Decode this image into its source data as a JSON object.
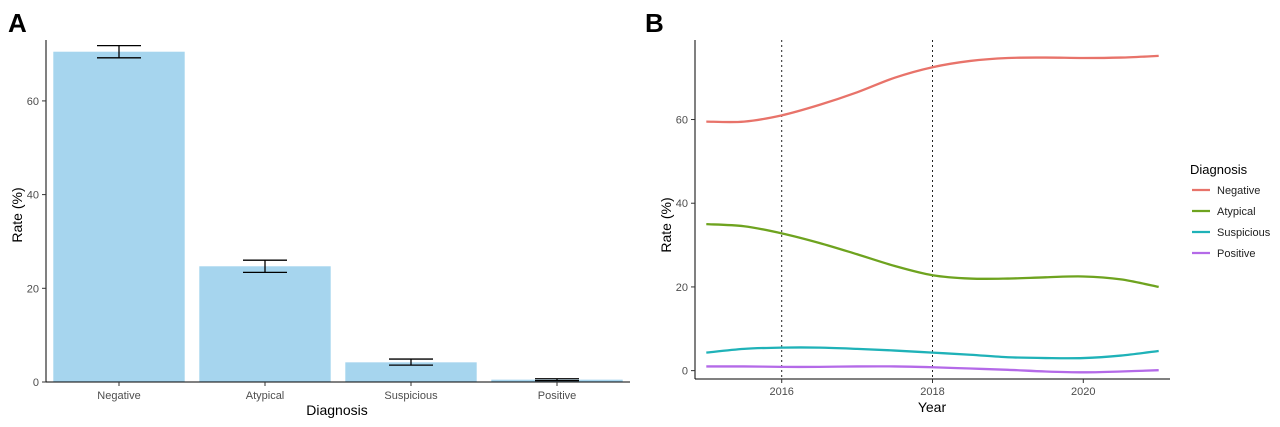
{
  "chart_data": [
    {
      "panel": "A",
      "type": "bar",
      "xlabel": "Diagnosis",
      "ylabel": "Rate (%)",
      "ylim": [
        0,
        73
      ],
      "yticks": [
        0,
        20,
        40,
        60
      ],
      "categories": [
        "Negative",
        "Atypical",
        "Suspicious",
        "Positive"
      ],
      "values": [
        70.5,
        24.7,
        4.2,
        0.5
      ],
      "error_low": [
        69.2,
        23.4,
        3.6,
        0.3
      ],
      "error_high": [
        71.8,
        26.0,
        4.9,
        0.7
      ],
      "bar_color": "#a6d5ee",
      "grid": false
    },
    {
      "panel": "B",
      "type": "line",
      "xlabel": "Year",
      "ylabel": "Rate (%)",
      "xlim": [
        2014.85,
        2021.15
      ],
      "ylim": [
        -2,
        79
      ],
      "xticks": [
        2016,
        2018,
        2020
      ],
      "yticks": [
        0,
        20,
        40,
        60
      ],
      "vlines": [
        2016,
        2018
      ],
      "grid": false,
      "legend": {
        "title": "Diagnosis",
        "position": "right"
      },
      "x": [
        2015,
        2015.5,
        2016,
        2016.5,
        2017,
        2017.5,
        2018,
        2018.5,
        2019,
        2019.5,
        2020,
        2020.5,
        2021
      ],
      "series": [
        {
          "name": "Negative",
          "color": "#e8736a",
          "values": [
            59.5,
            59.5,
            61.0,
            63.5,
            66.5,
            70.0,
            72.5,
            74.0,
            74.7,
            74.8,
            74.7,
            74.8,
            75.2
          ]
        },
        {
          "name": "Atypical",
          "color": "#6ea31f",
          "values": [
            35.0,
            34.5,
            32.8,
            30.5,
            27.8,
            25.0,
            22.8,
            22.0,
            22.0,
            22.3,
            22.5,
            21.8,
            20.0
          ]
        },
        {
          "name": "Suspicious",
          "color": "#1fb2b8",
          "values": [
            4.3,
            5.2,
            5.5,
            5.5,
            5.2,
            4.8,
            4.3,
            3.8,
            3.2,
            3.0,
            3.0,
            3.6,
            4.7
          ]
        },
        {
          "name": "Positive",
          "color": "#b46ae8",
          "values": [
            1.0,
            1.0,
            0.9,
            0.9,
            1.0,
            1.0,
            0.8,
            0.5,
            0.2,
            -0.2,
            -0.4,
            -0.2,
            0.1
          ]
        }
      ]
    }
  ]
}
